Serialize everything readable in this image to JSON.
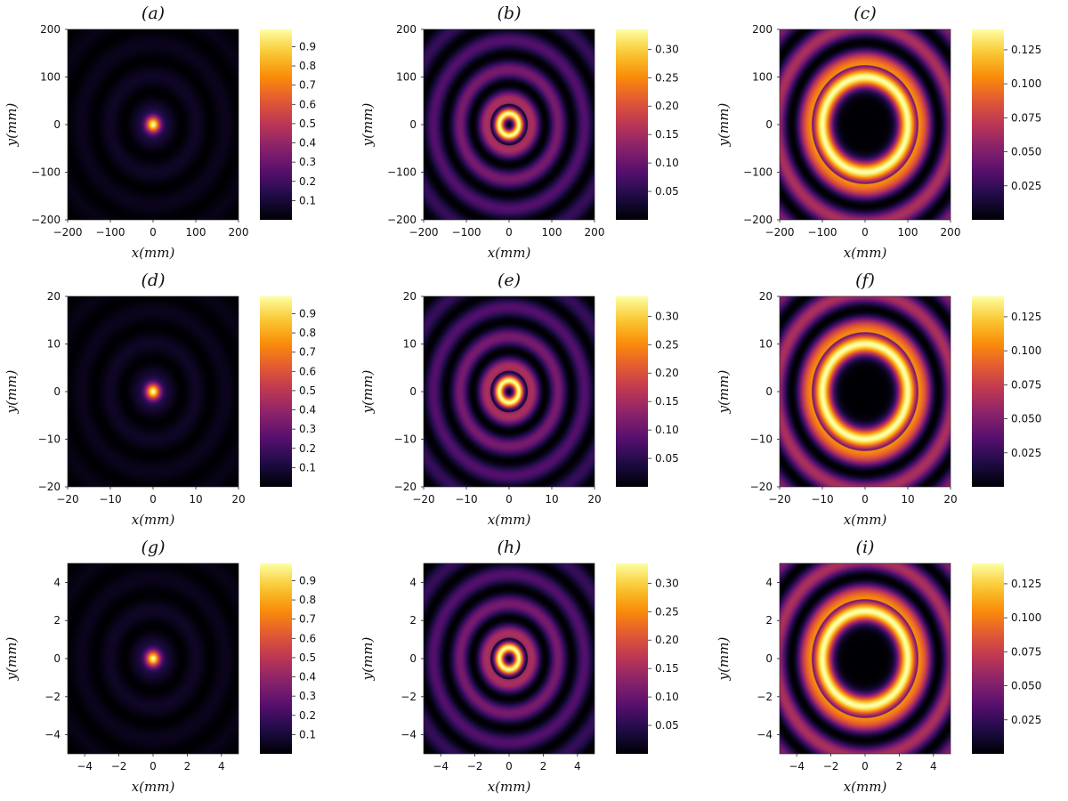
{
  "chart_data": [
    {
      "type": "heatmap",
      "title": "(a)",
      "xlabel": "x(mm)",
      "ylabel": "y(mm)",
      "xlim": [
        -200,
        200
      ],
      "ylim": [
        -200,
        200
      ],
      "xticks": [
        -200,
        -100,
        0,
        100,
        200
      ],
      "yticks": [
        -200,
        -100,
        0,
        100,
        200
      ],
      "xtick_labels": [
        "−200",
        "−100",
        "0",
        "100",
        "200"
      ],
      "ytick_labels": [
        "−200",
        "−100",
        "0",
        "100",
        "200"
      ],
      "colorbar": {
        "range": [
          0,
          0.99
        ],
        "ticks": [
          0.1,
          0.2,
          0.3,
          0.4,
          0.5,
          0.6,
          0.7,
          0.8,
          0.9
        ],
        "tick_labels": [
          "0.1",
          "0.2",
          "0.3",
          "0.4",
          "0.5",
          "0.6",
          "0.7",
          "0.8",
          "0.9"
        ]
      },
      "colormap": "inferno",
      "pattern": "central-peak"
    },
    {
      "type": "heatmap",
      "title": "(b)",
      "xlabel": "x(mm)",
      "ylabel": "y(mm)",
      "xlim": [
        -200,
        200
      ],
      "ylim": [
        -200,
        200
      ],
      "xticks": [
        -200,
        -100,
        0,
        100,
        200
      ],
      "yticks": [
        -200,
        -100,
        0,
        100,
        200
      ],
      "xtick_labels": [
        "−200",
        "−100",
        "0",
        "100",
        "200"
      ],
      "ytick_labels": [
        "−200",
        "−100",
        "0",
        "100",
        "200"
      ],
      "colorbar": {
        "range": [
          0,
          0.335
        ],
        "ticks": [
          0.05,
          0.1,
          0.15,
          0.2,
          0.25,
          0.3
        ],
        "tick_labels": [
          "0.05",
          "0.10",
          "0.15",
          "0.20",
          "0.25",
          "0.30"
        ]
      },
      "colormap": "inferno",
      "pattern": "small-ring"
    },
    {
      "type": "heatmap",
      "title": "(c)",
      "xlabel": "x(mm)",
      "ylabel": "y(mm)",
      "xlim": [
        -200,
        200
      ],
      "ylim": [
        -200,
        200
      ],
      "xticks": [
        -200,
        -100,
        0,
        100,
        200
      ],
      "yticks": [
        -200,
        -100,
        0,
        100,
        200
      ],
      "xtick_labels": [
        "−200",
        "−100",
        "0",
        "100",
        "200"
      ],
      "ytick_labels": [
        "−200",
        "−100",
        "0",
        "100",
        "200"
      ],
      "colorbar": {
        "range": [
          0,
          0.14
        ],
        "ticks": [
          0.025,
          0.05,
          0.075,
          0.1,
          0.125
        ],
        "tick_labels": [
          "0.025",
          "0.050",
          "0.075",
          "0.100",
          "0.125"
        ]
      },
      "colormap": "inferno",
      "pattern": "large-ring"
    },
    {
      "type": "heatmap",
      "title": "(d)",
      "xlabel": "x(mm)",
      "ylabel": "y(mm)",
      "xlim": [
        -20,
        20
      ],
      "ylim": [
        -20,
        20
      ],
      "xticks": [
        -20,
        -10,
        0,
        10,
        20
      ],
      "yticks": [
        -20,
        -10,
        0,
        10,
        20
      ],
      "xtick_labels": [
        "−20",
        "−10",
        "0",
        "10",
        "20"
      ],
      "ytick_labels": [
        "−20",
        "−10",
        "0",
        "10",
        "20"
      ],
      "colorbar": {
        "range": [
          0,
          0.99
        ],
        "ticks": [
          0.1,
          0.2,
          0.3,
          0.4,
          0.5,
          0.6,
          0.7,
          0.8,
          0.9
        ],
        "tick_labels": [
          "0.1",
          "0.2",
          "0.3",
          "0.4",
          "0.5",
          "0.6",
          "0.7",
          "0.8",
          "0.9"
        ]
      },
      "colormap": "inferno",
      "pattern": "central-peak"
    },
    {
      "type": "heatmap",
      "title": "(e)",
      "xlabel": "x(mm)",
      "ylabel": "y(mm)",
      "xlim": [
        -20,
        20
      ],
      "ylim": [
        -20,
        20
      ],
      "xticks": [
        -20,
        -10,
        0,
        10,
        20
      ],
      "yticks": [
        -20,
        -10,
        0,
        10,
        20
      ],
      "xtick_labels": [
        "−20",
        "−10",
        "0",
        "10",
        "20"
      ],
      "ytick_labels": [
        "−20",
        "−10",
        "0",
        "10",
        "20"
      ],
      "colorbar": {
        "range": [
          0,
          0.335
        ],
        "ticks": [
          0.05,
          0.1,
          0.15,
          0.2,
          0.25,
          0.3
        ],
        "tick_labels": [
          "0.05",
          "0.10",
          "0.15",
          "0.20",
          "0.25",
          "0.30"
        ]
      },
      "colormap": "inferno",
      "pattern": "small-ring"
    },
    {
      "type": "heatmap",
      "title": "(f)",
      "xlabel": "x(mm)",
      "ylabel": "y(mm)",
      "xlim": [
        -20,
        20
      ],
      "ylim": [
        -20,
        20
      ],
      "xticks": [
        -20,
        -10,
        0,
        10,
        20
      ],
      "yticks": [
        -20,
        -10,
        0,
        10,
        20
      ],
      "xtick_labels": [
        "−20",
        "−10",
        "0",
        "10",
        "20"
      ],
      "ytick_labels": [
        "−20",
        "−10",
        "0",
        "10",
        "20"
      ],
      "colorbar": {
        "range": [
          0,
          0.14
        ],
        "ticks": [
          0.025,
          0.05,
          0.075,
          0.1,
          0.125
        ],
        "tick_labels": [
          "0.025",
          "0.050",
          "0.075",
          "0.100",
          "0.125"
        ]
      },
      "colormap": "inferno",
      "pattern": "large-ring"
    },
    {
      "type": "heatmap",
      "title": "(g)",
      "xlabel": "x(mm)",
      "ylabel": "y(mm)",
      "xlim": [
        -5,
        5
      ],
      "ylim": [
        -5,
        5
      ],
      "xticks": [
        -4,
        -2,
        0,
        2,
        4
      ],
      "yticks": [
        -4,
        -2,
        0,
        2,
        4
      ],
      "xtick_labels": [
        "−4",
        "−2",
        "0",
        "2",
        "4"
      ],
      "ytick_labels": [
        "−4",
        "−2",
        "0",
        "2",
        "4"
      ],
      "colorbar": {
        "range": [
          0,
          0.99
        ],
        "ticks": [
          0.1,
          0.2,
          0.3,
          0.4,
          0.5,
          0.6,
          0.7,
          0.8,
          0.9
        ],
        "tick_labels": [
          "0.1",
          "0.2",
          "0.3",
          "0.4",
          "0.5",
          "0.6",
          "0.7",
          "0.8",
          "0.9"
        ]
      },
      "colormap": "inferno",
      "pattern": "central-peak"
    },
    {
      "type": "heatmap",
      "title": "(h)",
      "xlabel": "x(mm)",
      "ylabel": "y(mm)",
      "xlim": [
        -5,
        5
      ],
      "ylim": [
        -5,
        5
      ],
      "xticks": [
        -4,
        -2,
        0,
        2,
        4
      ],
      "yticks": [
        -4,
        -2,
        0,
        2,
        4
      ],
      "xtick_labels": [
        "−4",
        "−2",
        "0",
        "2",
        "4"
      ],
      "ytick_labels": [
        "−4",
        "−2",
        "0",
        "2",
        "4"
      ],
      "colorbar": {
        "range": [
          0,
          0.335
        ],
        "ticks": [
          0.05,
          0.1,
          0.15,
          0.2,
          0.25,
          0.3
        ],
        "tick_labels": [
          "0.05",
          "0.10",
          "0.15",
          "0.20",
          "0.25",
          "0.30"
        ]
      },
      "colormap": "inferno",
      "pattern": "small-ring"
    },
    {
      "type": "heatmap",
      "title": "(i)",
      "xlabel": "x(mm)",
      "ylabel": "y(mm)",
      "xlim": [
        -5,
        5
      ],
      "ylim": [
        -5,
        5
      ],
      "xticks": [
        -4,
        -2,
        0,
        2,
        4
      ],
      "yticks": [
        -4,
        -2,
        0,
        2,
        4
      ],
      "xtick_labels": [
        "−4",
        "−2",
        "0",
        "2",
        "4"
      ],
      "ytick_labels": [
        "−4",
        "−2",
        "0",
        "2",
        "4"
      ],
      "colorbar": {
        "range": [
          0,
          0.14
        ],
        "ticks": [
          0.025,
          0.05,
          0.075,
          0.1,
          0.125
        ],
        "tick_labels": [
          "0.025",
          "0.050",
          "0.075",
          "0.100",
          "0.125"
        ]
      },
      "colormap": "inferno",
      "pattern": "large-ring"
    }
  ]
}
